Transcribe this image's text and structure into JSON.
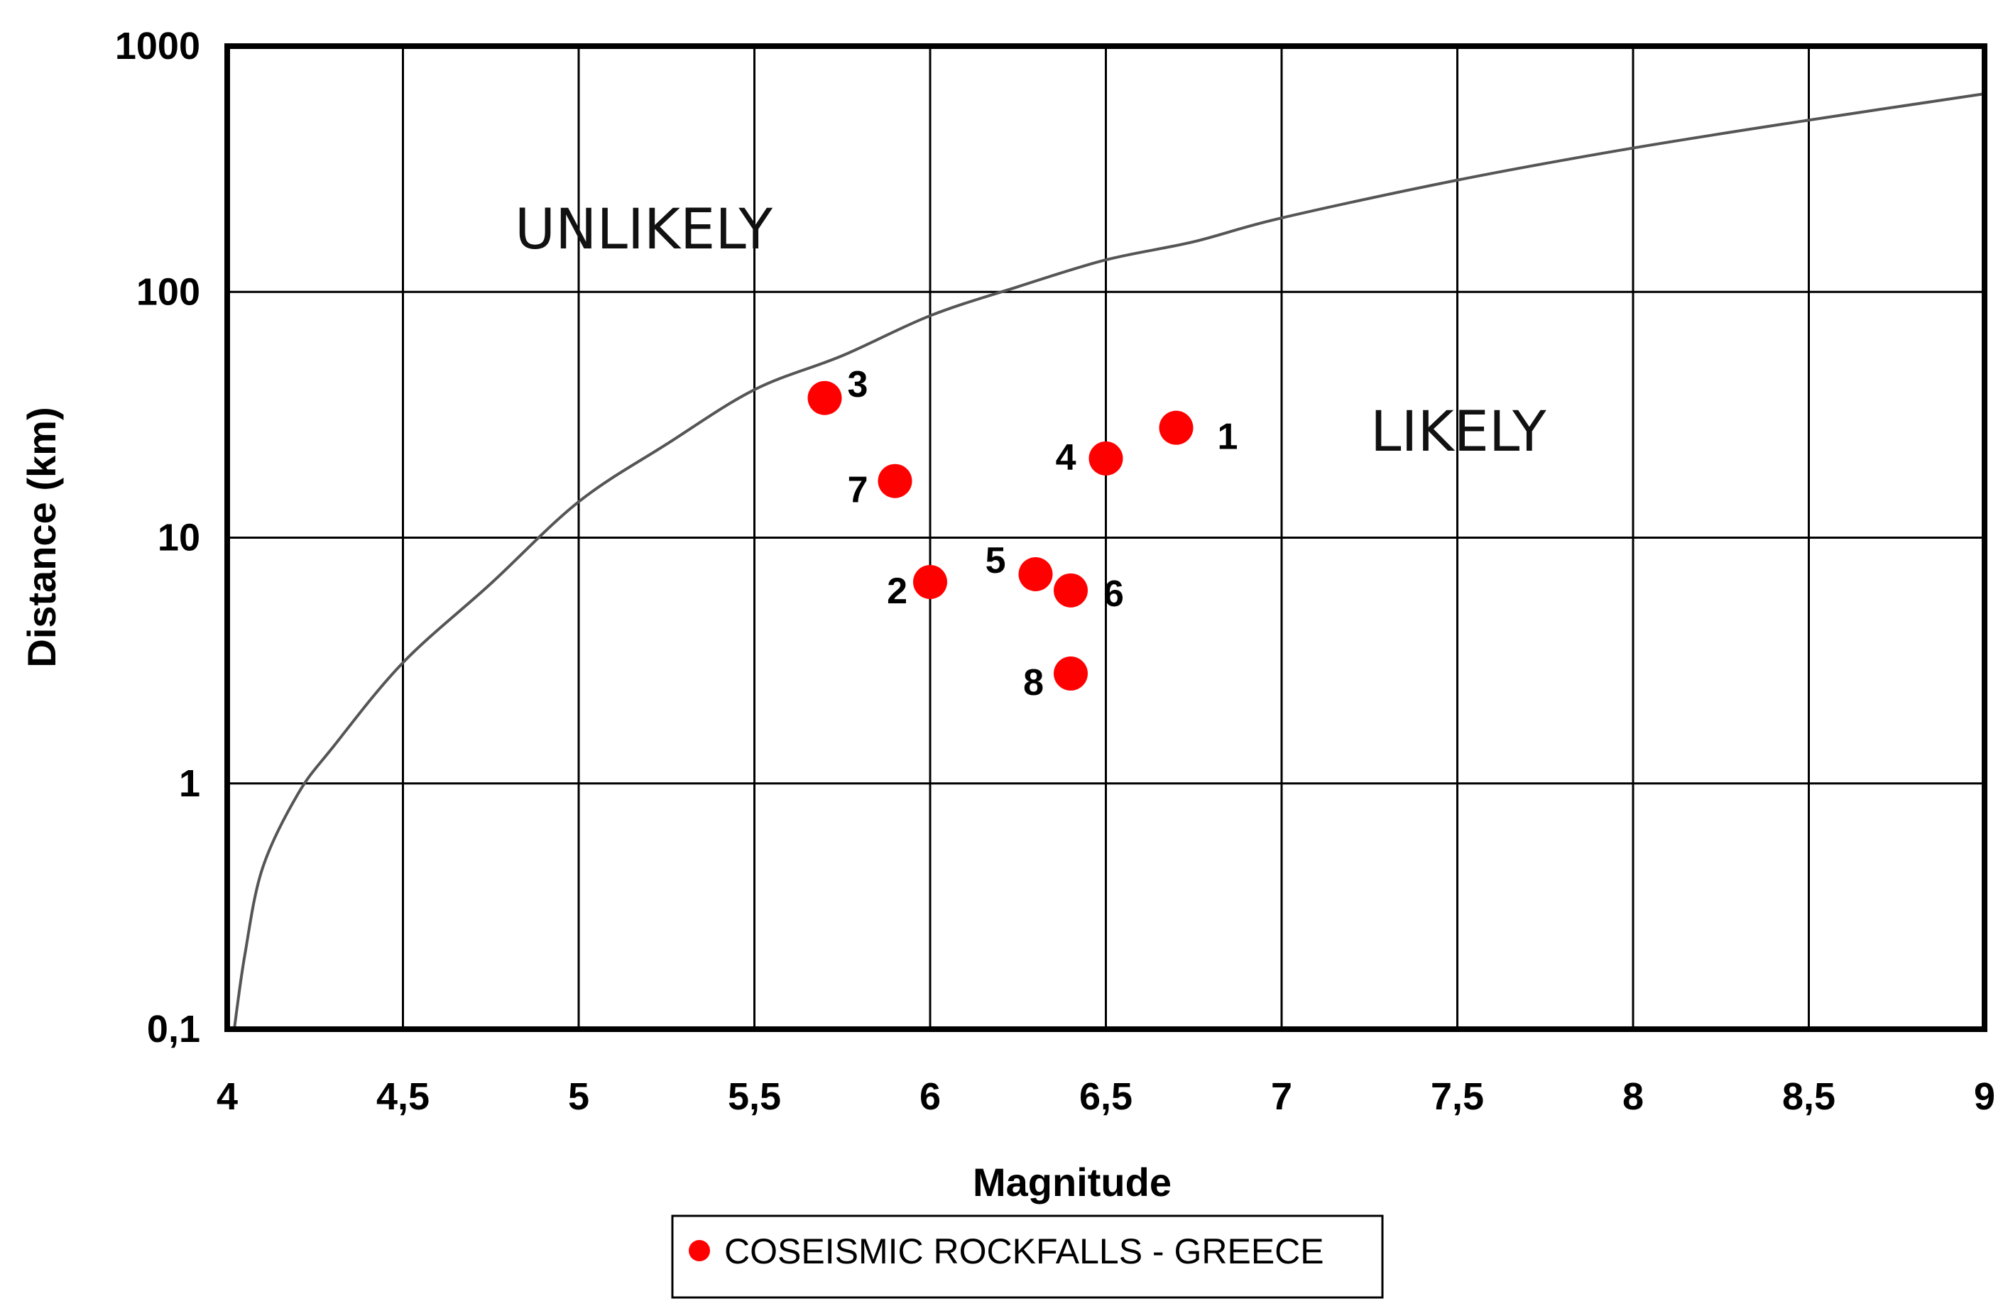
{
  "chart_data": {
    "type": "scatter",
    "xlabel": "Magnitude",
    "ylabel": "Distance (km)",
    "xlim": [
      4,
      9
    ],
    "ylim": [
      0.1,
      1000
    ],
    "yscale": "log",
    "grid": true,
    "legend_position": "bottom-center",
    "x_ticks": [
      4,
      4.5,
      5,
      5.5,
      6,
      6.5,
      7,
      7.5,
      8,
      8.5,
      9
    ],
    "x_tick_labels": [
      "4",
      "4,5",
      "5",
      "5,5",
      "6",
      "6,5",
      "7",
      "7,5",
      "8",
      "8,5",
      "9"
    ],
    "y_ticks": [
      0.1,
      1,
      10,
      100,
      1000
    ],
    "y_tick_labels": [
      "0,1",
      "1",
      "10",
      "100",
      "1000"
    ],
    "region_labels": {
      "upper": "UNLIKELY",
      "lower": "LIKELY"
    },
    "boundary_curve": {
      "color": "#555555",
      "points": [
        [
          4.02,
          0.1
        ],
        [
          4.05,
          0.2
        ],
        [
          4.1,
          0.45
        ],
        [
          4.2,
          0.9
        ],
        [
          4.3,
          1.4
        ],
        [
          4.5,
          3.1
        ],
        [
          4.75,
          6.5
        ],
        [
          5.0,
          14
        ],
        [
          5.25,
          24
        ],
        [
          5.5,
          40
        ],
        [
          5.75,
          55
        ],
        [
          6.0,
          80
        ],
        [
          6.25,
          105
        ],
        [
          6.5,
          135
        ],
        [
          6.75,
          160
        ],
        [
          7.0,
          200
        ],
        [
          7.5,
          285
        ],
        [
          8.0,
          385
        ],
        [
          8.5,
          500
        ],
        [
          9.0,
          640
        ]
      ]
    },
    "series": [
      {
        "name": "COSEISMIC ROCKFALLS - GREECE",
        "color": "#ff0000",
        "points": [
          {
            "label": "1",
            "x": 6.7,
            "y": 28
          },
          {
            "label": "2",
            "x": 6.0,
            "y": 6.6
          },
          {
            "label": "3",
            "x": 5.7,
            "y": 37
          },
          {
            "label": "4",
            "x": 6.5,
            "y": 21
          },
          {
            "label": "5",
            "x": 6.3,
            "y": 7.1
          },
          {
            "label": "6",
            "x": 6.4,
            "y": 6.1
          },
          {
            "label": "7",
            "x": 5.9,
            "y": 17
          },
          {
            "label": "8",
            "x": 6.4,
            "y": 2.8
          }
        ]
      }
    ]
  }
}
